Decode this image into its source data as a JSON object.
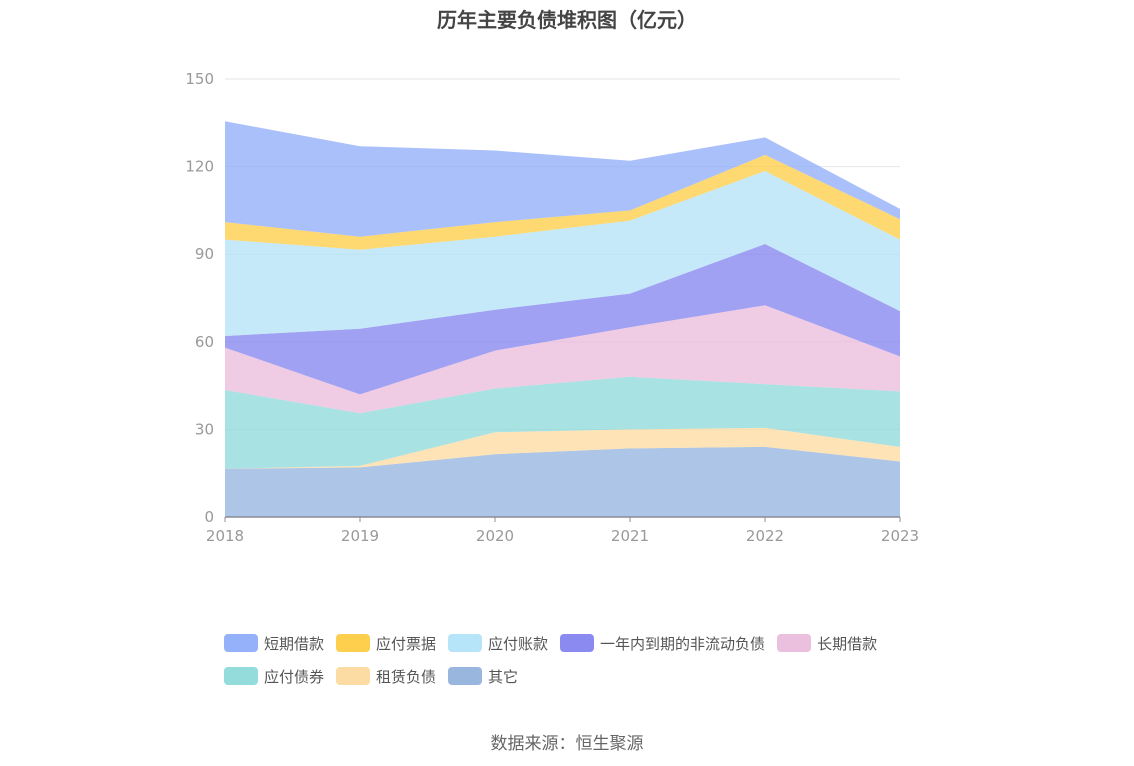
{
  "title": "历年主要负债堆积图（亿元）",
  "source": "数据来源：恒生聚源",
  "chart_data": {
    "type": "area",
    "stacked": true,
    "title": "历年主要负债堆积图（亿元）",
    "categories": [
      "2018",
      "2019",
      "2020",
      "2021",
      "2022",
      "2023"
    ],
    "ylim": [
      0,
      150
    ],
    "yticks": [
      0,
      30,
      60,
      90,
      120,
      150
    ],
    "grid": true,
    "legend_position": "bottom",
    "series": [
      {
        "name": "其它",
        "color": "#8eaedc",
        "values": [
          16.5,
          17.0,
          21.5,
          23.5,
          24.0,
          19.0
        ]
      },
      {
        "name": "租赁负债",
        "color": "#fdd89a",
        "values": [
          0.0,
          0.5,
          7.5,
          6.5,
          6.5,
          5.0
        ]
      },
      {
        "name": "应付债券",
        "color": "#88d7d7",
        "values": [
          27.0,
          18.0,
          15.0,
          18.0,
          15.0,
          19.0
        ]
      },
      {
        "name": "长期借款",
        "color": "#e9b9da",
        "values": [
          14.5,
          6.5,
          13.0,
          17.0,
          27.0,
          12.0
        ]
      },
      {
        "name": "一年内到期的非流动负债",
        "color": "#7d7df0",
        "values": [
          4.0,
          22.5,
          14.0,
          11.5,
          21.0,
          15.5
        ]
      },
      {
        "name": "应付账款",
        "color": "#aee1f7",
        "values": [
          33.0,
          27.0,
          25.0,
          25.0,
          25.0,
          24.5
        ]
      },
      {
        "name": "应付票据",
        "color": "#fec93a",
        "values": [
          6.0,
          4.5,
          5.0,
          3.5,
          5.5,
          7.0
        ]
      },
      {
        "name": "短期借款",
        "color": "#89a8f8",
        "values": [
          34.5,
          31.0,
          24.5,
          17.0,
          6.0,
          3.5
        ]
      }
    ]
  },
  "legend": {
    "row1": [
      {
        "label": "短期借款",
        "color": "#89a8f8"
      },
      {
        "label": "应付票据",
        "color": "#fec93a"
      },
      {
        "label": "应付账款",
        "color": "#aee1f7"
      },
      {
        "label": "一年内到期的非流动负债",
        "color": "#7d7df0"
      },
      {
        "label": "长期借款",
        "color": "#e9b9da"
      }
    ],
    "row2": [
      {
        "label": "应付债券",
        "color": "#88d7d7"
      },
      {
        "label": "租赁负债",
        "color": "#fdd89a"
      },
      {
        "label": "其它",
        "color": "#8eaedc"
      }
    ]
  }
}
